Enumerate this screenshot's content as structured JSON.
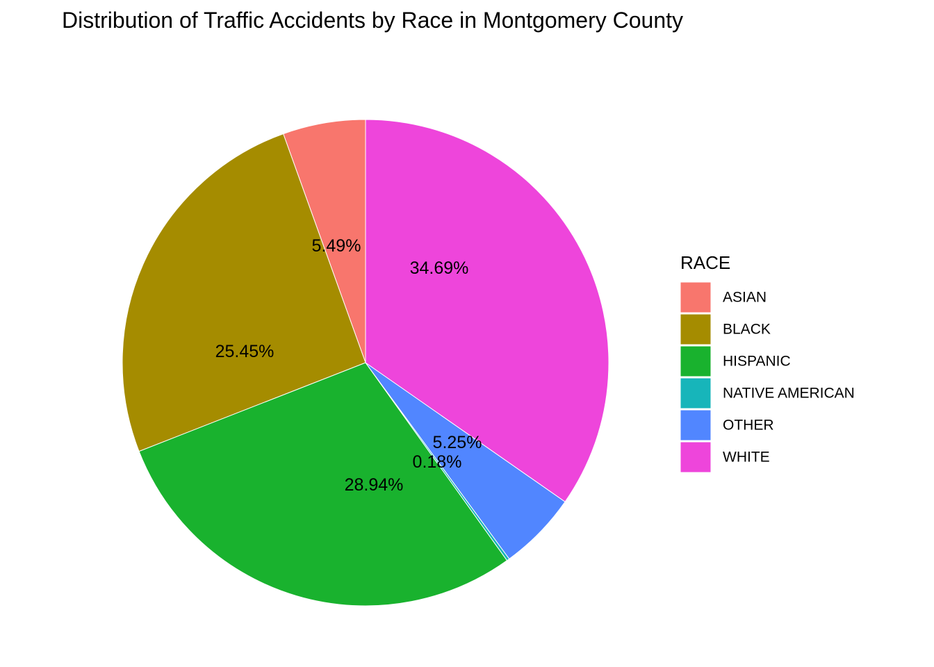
{
  "chart_data": {
    "type": "pie",
    "title": "Distribution of Traffic Accidents by Race in Montgomery County",
    "legend": {
      "title": "RACE",
      "placement": "right"
    },
    "categories": [
      "ASIAN",
      "BLACK",
      "HISPANIC",
      "NATIVE AMERICAN",
      "OTHER",
      "WHITE"
    ],
    "values": [
      5.49,
      25.45,
      28.94,
      0.18,
      5.25,
      34.69
    ],
    "labels": [
      "5.49%",
      "25.45%",
      "28.94%",
      "0.18%",
      "5.25%",
      "34.69%"
    ],
    "colors": [
      "#F8766D",
      "#A58C00",
      "#19B22E",
      "#17B5BA",
      "#5186FF",
      "#EE45DB"
    ],
    "direction": "counterclockwise",
    "start": "top"
  }
}
